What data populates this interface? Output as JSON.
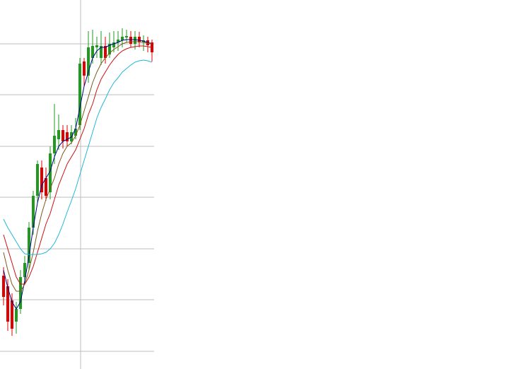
{
  "chart_data": {
    "type": "candlestick",
    "x": [
      0,
      1,
      2,
      3,
      4,
      5,
      6,
      7,
      8,
      9,
      10,
      11,
      12,
      13,
      14,
      15,
      16,
      17,
      18,
      19,
      20,
      21,
      22,
      23,
      24,
      25,
      26,
      27,
      28,
      29,
      30,
      31,
      32,
      33,
      34,
      35
    ],
    "open": [
      132,
      117,
      97,
      67,
      85,
      130,
      150,
      200,
      245,
      285,
      270,
      250,
      305,
      325,
      338,
      335,
      322,
      330,
      345,
      435,
      415,
      440,
      455,
      440,
      457,
      445,
      455,
      462,
      465,
      469,
      470,
      460,
      470,
      462,
      465,
      462
    ],
    "high": [
      144,
      127,
      107,
      95,
      140,
      160,
      208,
      252,
      295,
      295,
      285,
      315,
      375,
      360,
      345,
      345,
      345,
      355,
      440,
      440,
      478,
      480,
      470,
      478,
      470,
      476,
      478,
      478,
      482,
      480,
      478,
      478,
      477,
      472,
      470,
      466
    ],
    "low": [
      90,
      54,
      47,
      50,
      78,
      120,
      140,
      190,
      235,
      240,
      238,
      240,
      290,
      310,
      312,
      315,
      318,
      325,
      338,
      400,
      405,
      432,
      440,
      430,
      432,
      440,
      448,
      450,
      455,
      462,
      455,
      452,
      455,
      450,
      448,
      435
    ],
    "close": [
      102,
      67,
      57,
      85,
      130,
      150,
      200,
      245,
      290,
      250,
      245,
      305,
      330,
      338,
      322,
      322,
      335,
      340,
      432,
      415,
      455,
      457,
      458,
      457,
      440,
      460,
      462,
      466,
      470,
      471,
      460,
      470,
      462,
      465,
      458,
      448
    ],
    "up_color": "#1f9a1f",
    "down_color": "#e00000",
    "series": [
      {
        "color": "#00008b",
        "values": [
          140,
          115,
          95,
          85,
          95,
          125,
          160,
          200,
          235,
          260,
          270,
          280,
          300,
          315,
          322,
          325,
          328,
          340,
          370,
          400,
          420,
          440,
          450,
          455,
          455,
          458,
          460,
          462,
          465,
          466,
          466,
          466,
          465,
          464,
          462,
          460
        ]
      },
      {
        "color": "#7a5a1a",
        "values": [
          165,
          140,
          120,
          110,
          110,
          120,
          140,
          165,
          195,
          220,
          240,
          255,
          270,
          290,
          305,
          315,
          320,
          330,
          345,
          365,
          385,
          405,
          420,
          432,
          440,
          447,
          452,
          456,
          460,
          462,
          463,
          463,
          463,
          462,
          461,
          460
        ]
      },
      {
        "color": "#cc1010",
        "values": [
          190,
          170,
          150,
          130,
          120,
          120,
          130,
          145,
          165,
          185,
          205,
          220,
          240,
          260,
          275,
          290,
          300,
          310,
          325,
          340,
          360,
          375,
          395,
          410,
          420,
          430,
          438,
          445,
          450,
          453,
          455,
          456,
          457,
          457,
          456,
          455
        ]
      },
      {
        "color": "#20b8d8",
        "values": [
          212,
          200,
          190,
          180,
          170,
          163,
          162,
          162,
          162,
          163,
          165,
          170,
          178,
          190,
          205,
          222,
          238,
          255,
          275,
          295,
          315,
          335,
          355,
          370,
          382,
          395,
          405,
          412,
          420,
          425,
          430,
          434,
          436,
          437,
          436,
          434
        ]
      }
    ],
    "xlim": [
      -0.833,
      35.5
    ],
    "xticks": [
      18.17
    ],
    "ylim": [
      0,
      522
    ],
    "yticks": [
      25,
      98,
      170,
      243,
      315,
      388,
      460
    ],
    "grid": true,
    "grid_color": "#bdbdbd"
  }
}
